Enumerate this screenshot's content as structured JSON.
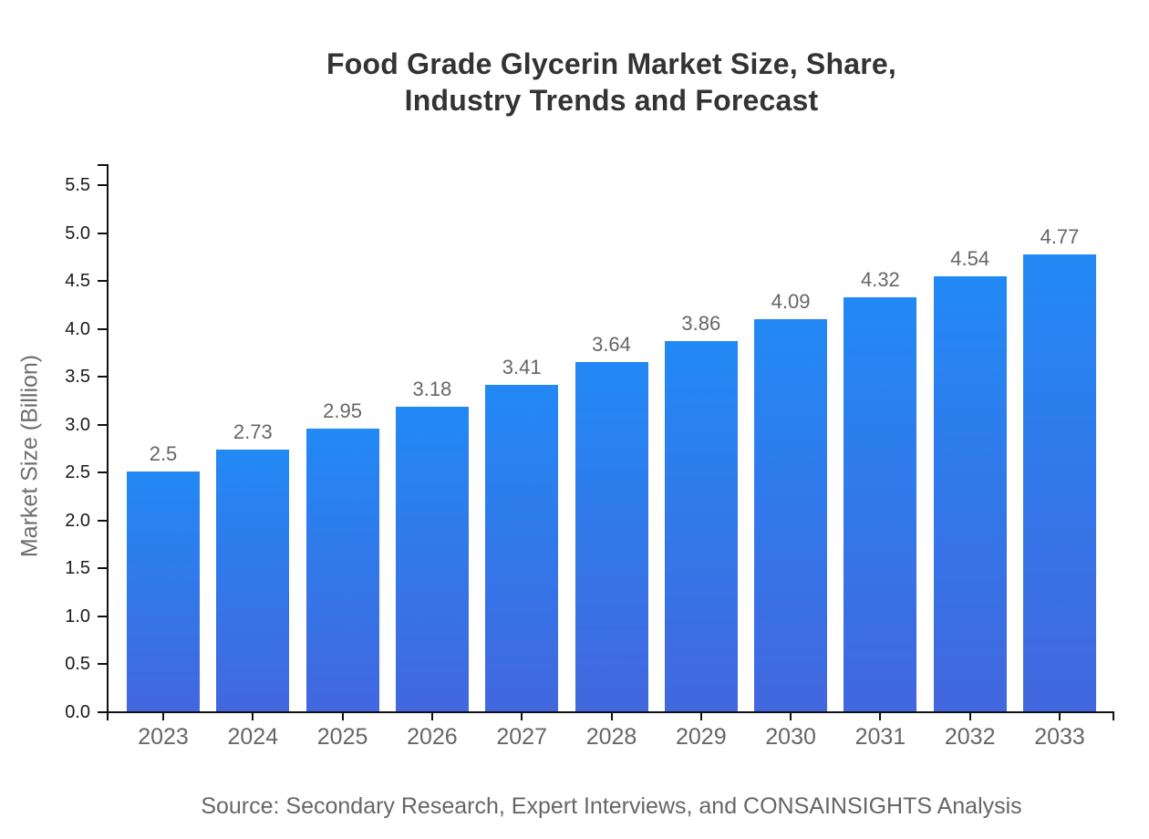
{
  "header": {
    "title_line1": "Food Grade Glycerin Market Size, Share,",
    "title_line2": "Industry Trends and Forecast"
  },
  "chart_data": {
    "type": "bar",
    "title": "Food Grade Glycerin Market Size, Share, Industry Trends and Forecast",
    "categories": [
      "2023",
      "2024",
      "2025",
      "2026",
      "2027",
      "2028",
      "2029",
      "2030",
      "2031",
      "2032",
      "2033"
    ],
    "values": [
      2.5,
      2.73,
      2.95,
      3.18,
      3.41,
      3.64,
      3.86,
      4.09,
      4.32,
      4.54,
      4.77
    ],
    "bar_labels": [
      "2.5",
      "2.73",
      "2.95",
      "3.18",
      "3.41",
      "3.64",
      "3.86",
      "4.09",
      "4.32",
      "4.54",
      "4.77"
    ],
    "xlabel": "",
    "ylabel": "Market Size (Billion)",
    "ylim": [
      0,
      5.7
    ],
    "ytick_labels": [
      "0.0",
      "0.5",
      "1.0",
      "1.5",
      "2.0",
      "2.5",
      "3.0",
      "3.5",
      "4.0",
      "4.5",
      "5.0",
      "5.5"
    ],
    "grid": false,
    "legend": false,
    "colors": {
      "bar_gradient_top": "#2289f5",
      "bar_gradient_bottom": "#4267de",
      "axis": "#111111",
      "y_tick_label": "#1a1a1a",
      "x_tick_label": "#666666",
      "value_label": "#666666",
      "title": "#333333",
      "source": "#666666"
    }
  },
  "footer": {
    "source": "Source: Secondary Research, Expert Interviews, and CONSAINSIGHTS Analysis"
  }
}
